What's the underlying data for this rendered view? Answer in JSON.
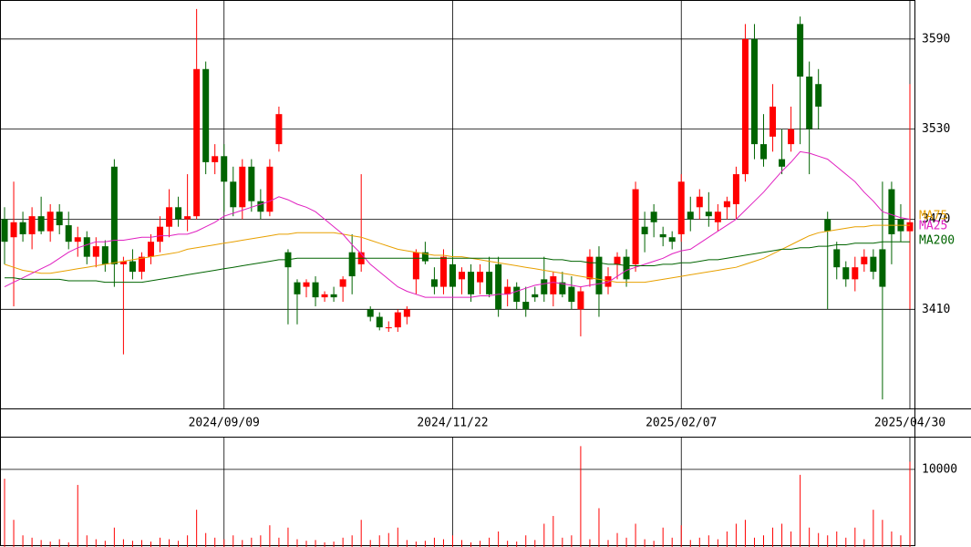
{
  "chart_data": {
    "type": "candlestick",
    "categories": [
      null,
      null,
      null,
      null,
      null,
      null,
      null,
      null,
      null,
      null,
      null,
      null,
      null,
      null,
      null,
      null,
      null,
      null,
      null,
      null,
      null,
      null,
      null,
      null,
      "2024/09/09",
      null,
      null,
      null,
      null,
      null,
      null,
      null,
      null,
      null,
      null,
      null,
      null,
      null,
      null,
      null,
      null,
      null,
      null,
      null,
      null,
      null,
      null,
      null,
      null,
      "2024/11/22",
      null,
      null,
      null,
      null,
      null,
      null,
      null,
      null,
      null,
      null,
      null,
      null,
      null,
      null,
      null,
      null,
      null,
      null,
      null,
      null,
      null,
      null,
      null,
      null,
      "2025/02/07",
      null,
      null,
      null,
      null,
      null,
      null,
      null,
      null,
      null,
      null,
      null,
      null,
      null,
      null,
      null,
      null,
      null,
      null,
      null,
      null,
      null,
      null,
      null,
      null,
      "2025/04/30"
    ],
    "open": [
      3470,
      3458,
      3468,
      3460,
      3472,
      3462,
      3475,
      3466,
      3455,
      3458,
      3445,
      3452,
      3505,
      3440,
      3442,
      3435,
      3445,
      3455,
      3465,
      3478,
      3470,
      3472,
      3570,
      3508,
      3512,
      3495,
      3478,
      3505,
      3482,
      3475,
      3520,
      3448,
      3428,
      3425,
      3428,
      3418,
      3420,
      3425,
      3448,
      3440,
      3410,
      3405,
      3398,
      3398,
      3405,
      3430,
      3448,
      3430,
      3425,
      3440,
      3430,
      3435,
      3428,
      3435,
      3440,
      3420,
      3425,
      3415,
      3420,
      3430,
      3420,
      3428,
      3425,
      3410,
      3430,
      3445,
      3425,
      3440,
      3445,
      3440,
      3465,
      3475,
      3460,
      3458,
      3460,
      3475,
      3478,
      3475,
      3468,
      3478,
      3480,
      3500,
      3590,
      3520,
      3525,
      3510,
      3520,
      3600,
      3565,
      3560,
      3470,
      3450,
      3438,
      3430,
      3440,
      3445,
      3450,
      3490,
      3470,
      3462
    ],
    "high": [
      3478,
      3495,
      3475,
      3478,
      3485,
      3480,
      3480,
      3475,
      3465,
      3462,
      3458,
      3456,
      3510,
      3445,
      3450,
      3448,
      3460,
      3472,
      3490,
      3485,
      3500,
      3610,
      3575,
      3520,
      3520,
      3505,
      3510,
      3510,
      3490,
      3510,
      3545,
      3450,
      3430,
      3430,
      3432,
      3422,
      3425,
      3432,
      3460,
      3500,
      3412,
      3408,
      3402,
      3410,
      3412,
      3450,
      3455,
      3438,
      3450,
      3450,
      3438,
      3440,
      3440,
      3445,
      3445,
      3430,
      3428,
      3425,
      3425,
      3445,
      3435,
      3435,
      3432,
      3425,
      3450,
      3452,
      3438,
      3448,
      3450,
      3495,
      3475,
      3480,
      3465,
      3462,
      3500,
      3485,
      3490,
      3488,
      3480,
      3485,
      3505,
      3600,
      3600,
      3540,
      3560,
      3530,
      3545,
      3605,
      3575,
      3570,
      3475,
      3455,
      3442,
      3445,
      3450,
      3450,
      3495,
      3495,
      3480,
      3560
    ],
    "low": [
      3440,
      3412,
      3455,
      3450,
      3460,
      3455,
      3460,
      3450,
      3445,
      3440,
      3438,
      3435,
      3425,
      3380,
      3430,
      3430,
      3440,
      3448,
      3458,
      3465,
      3462,
      3470,
      3500,
      3500,
      3475,
      3472,
      3470,
      3475,
      3470,
      3472,
      3515,
      3400,
      3400,
      3418,
      3412,
      3415,
      3415,
      3415,
      3420,
      3435,
      3402,
      3396,
      3395,
      3395,
      3400,
      3420,
      3440,
      3420,
      3420,
      3420,
      3420,
      3415,
      3420,
      3418,
      3405,
      3412,
      3410,
      3405,
      3415,
      3415,
      3412,
      3418,
      3410,
      3392,
      3425,
      3405,
      3420,
      3430,
      3425,
      3435,
      3448,
      3458,
      3452,
      3450,
      3455,
      3462,
      3470,
      3465,
      3462,
      3470,
      3470,
      3495,
      3510,
      3505,
      3515,
      3500,
      3515,
      3520,
      3500,
      3530,
      3410,
      3430,
      3425,
      3422,
      3435,
      3430,
      3350,
      3440,
      3455,
      3410
    ],
    "close": [
      3455,
      3468,
      3460,
      3472,
      3462,
      3475,
      3466,
      3455,
      3458,
      3445,
      3452,
      3440,
      3440,
      3442,
      3435,
      3445,
      3455,
      3465,
      3478,
      3470,
      3472,
      3570,
      3508,
      3512,
      3495,
      3478,
      3505,
      3482,
      3475,
      3505,
      3540,
      3438,
      3420,
      3428,
      3418,
      3420,
      3418,
      3430,
      3432,
      3448,
      3405,
      3398,
      3398,
      3408,
      3410,
      3448,
      3442,
      3425,
      3445,
      3425,
      3435,
      3420,
      3435,
      3420,
      3410,
      3425,
      3415,
      3410,
      3418,
      3420,
      3432,
      3420,
      3415,
      3422,
      3445,
      3420,
      3432,
      3445,
      3430,
      3490,
      3460,
      3468,
      3458,
      3455,
      3495,
      3470,
      3485,
      3472,
      3475,
      3482,
      3500,
      3590,
      3520,
      3510,
      3545,
      3505,
      3530,
      3565,
      3530,
      3545,
      3462,
      3438,
      3430,
      3438,
      3445,
      3435,
      3425,
      3460,
      3462,
      3468
    ],
    "up_color": "#ff0000",
    "down_color": "#006400",
    "ylim": [
      3344,
      3616
    ],
    "yticks": [
      3410,
      3470,
      3530,
      3590
    ],
    "grid": true,
    "series": [
      {
        "name": "MA75",
        "color": "#e8a000",
        "values": [
          3440,
          3438,
          3436,
          3435,
          3434,
          3434,
          3435,
          3436,
          3437,
          3438,
          3439,
          3440,
          3441,
          3442,
          3443,
          3444,
          3445,
          3446,
          3447,
          3448,
          3450,
          3451,
          3452,
          3453,
          3454,
          3455,
          3456,
          3457,
          3458,
          3459,
          3460,
          3460,
          3461,
          3461,
          3461,
          3461,
          3461,
          3460,
          3459,
          3458,
          3456,
          3454,
          3452,
          3450,
          3449,
          3448,
          3447,
          3446,
          3446,
          3445,
          3445,
          3444,
          3443,
          3442,
          3441,
          3440,
          3439,
          3438,
          3437,
          3436,
          3435,
          3434,
          3433,
          3432,
          3431,
          3430,
          3429,
          3428,
          3428,
          3428,
          3428,
          3429,
          3430,
          3431,
          3432,
          3433,
          3434,
          3435,
          3436,
          3437,
          3438,
          3440,
          3442,
          3444,
          3447,
          3450,
          3453,
          3456,
          3459,
          3461,
          3462,
          3463,
          3464,
          3465,
          3465,
          3466,
          3466,
          3466,
          3466,
          3466
        ]
      },
      {
        "name": "MA25",
        "color": "#e020c0",
        "values": [
          3425,
          3428,
          3431,
          3434,
          3437,
          3440,
          3444,
          3448,
          3451,
          3453,
          3455,
          3455,
          3456,
          3456,
          3457,
          3458,
          3458,
          3459,
          3459,
          3460,
          3460,
          3462,
          3465,
          3468,
          3472,
          3474,
          3476,
          3478,
          3480,
          3482,
          3485,
          3483,
          3480,
          3478,
          3475,
          3470,
          3465,
          3460,
          3453,
          3447,
          3440,
          3435,
          3430,
          3425,
          3422,
          3420,
          3418,
          3418,
          3418,
          3418,
          3418,
          3418,
          3419,
          3419,
          3420,
          3420,
          3422,
          3424,
          3426,
          3427,
          3428,
          3427,
          3426,
          3425,
          3426,
          3427,
          3428,
          3432,
          3436,
          3438,
          3440,
          3442,
          3444,
          3447,
          3449,
          3450,
          3454,
          3458,
          3462,
          3466,
          3470,
          3476,
          3482,
          3488,
          3495,
          3502,
          3508,
          3515,
          3514,
          3512,
          3510,
          3505,
          3500,
          3495,
          3488,
          3482,
          3475,
          3473,
          3471,
          3470
        ]
      },
      {
        "name": "MA200",
        "color": "#006400",
        "values": [
          3431,
          3431,
          3430,
          3430,
          3430,
          3430,
          3430,
          3429,
          3429,
          3429,
          3429,
          3428,
          3428,
          3428,
          3428,
          3428,
          3429,
          3430,
          3431,
          3432,
          3433,
          3434,
          3435,
          3436,
          3437,
          3438,
          3439,
          3440,
          3441,
          3442,
          3443,
          3443,
          3444,
          3444,
          3444,
          3444,
          3444,
          3444,
          3444,
          3444,
          3444,
          3444,
          3444,
          3444,
          3444,
          3444,
          3444,
          3444,
          3444,
          3444,
          3444,
          3444,
          3444,
          3444,
          3444,
          3444,
          3444,
          3444,
          3444,
          3444,
          3443,
          3443,
          3442,
          3442,
          3441,
          3441,
          3440,
          3440,
          3439,
          3439,
          3439,
          3439,
          3440,
          3440,
          3441,
          3441,
          3442,
          3443,
          3443,
          3444,
          3445,
          3446,
          3447,
          3448,
          3449,
          3450,
          3450,
          3451,
          3451,
          3452,
          3452,
          3453,
          3453,
          3454,
          3454,
          3454,
          3455,
          3455,
          3455,
          3455
        ]
      }
    ],
    "volume": {
      "color": "#ff0000",
      "ylim": [
        0,
        14100
      ],
      "yticks": [
        10000
      ],
      "values": [
        8800,
        3500,
        1500,
        1200,
        900,
        700,
        1000,
        600,
        8000,
        1500,
        1000,
        800,
        2500,
        1000,
        800,
        900,
        700,
        1200,
        1000,
        800,
        1500,
        4800,
        1800,
        1200,
        1000,
        1500,
        900,
        1200,
        1500,
        2800,
        1200,
        2500,
        1000,
        800,
        900,
        600,
        700,
        1200,
        1500,
        3500,
        900,
        1500,
        1800,
        2500,
        900,
        700,
        800,
        1200,
        1000,
        1500,
        900,
        600,
        800,
        1200,
        2000,
        800,
        700,
        1500,
        900,
        3000,
        4000,
        1200,
        1500,
        13000,
        1000,
        5000,
        900,
        1800,
        1200,
        3000,
        1000,
        800,
        2500,
        1200,
        2800,
        900,
        1200,
        1500,
        1000,
        2000,
        3000,
        3500,
        1200,
        1500,
        2500,
        3000,
        2000,
        9300,
        2500,
        1800,
        1500,
        2000,
        1200,
        2500,
        1000,
        4800,
        3500,
        2000,
        1500,
        11000
      ]
    }
  }
}
